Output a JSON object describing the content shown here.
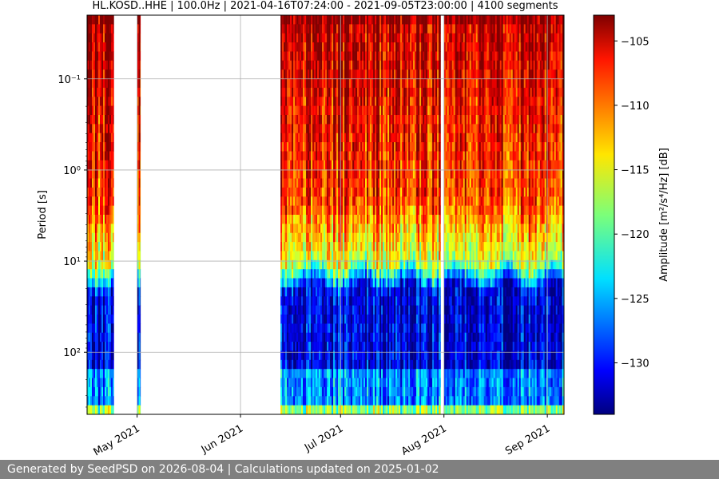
{
  "chart_data": {
    "type": "heatmap",
    "title": "HL.KOSD..HHE | 100.0Hz | 2021-04-16T07:24:00 - 2021-09-05T23:00:00 | 4100 segments",
    "xlabel": "",
    "ylabel": "Period [s]",
    "y_scale": "log",
    "y_inverted": true,
    "y_ticks": [
      {
        "value": 0.1,
        "label": "10⁻¹"
      },
      {
        "value": 1,
        "label": "10⁰"
      },
      {
        "value": 10,
        "label": "10¹"
      },
      {
        "value": 100,
        "label": "10²"
      }
    ],
    "xlim": [
      "2021-04-16",
      "2021-09-06"
    ],
    "x_ticks": [
      {
        "date": "2021-05-01",
        "label": "May 2021"
      },
      {
        "date": "2021-06-01",
        "label": "Jun 2021"
      },
      {
        "date": "2021-07-01",
        "label": "Jul 2021"
      },
      {
        "date": "2021-08-01",
        "label": "Aug 2021"
      },
      {
        "date": "2021-09-01",
        "label": "Sep 2021"
      }
    ],
    "grid": true,
    "data_coverage": [
      [
        "2021-04-16",
        "2021-04-24"
      ],
      [
        "2021-05-01",
        "2021-05-02"
      ],
      [
        "2021-06-13",
        "2021-07-31"
      ],
      [
        "2021-08-01",
        "2021-09-06"
      ]
    ],
    "colorbar": {
      "label": "Amplitude [m²/s⁴/Hz] [dB]",
      "range": [
        -134,
        -103
      ],
      "ticks": [
        -105,
        -110,
        -115,
        -120,
        -125,
        -130
      ],
      "colormap": "jet"
    }
  },
  "footer_text": "Generated by SeedPSD on 2026-08-04 | Calculations updated on 2025-01-02"
}
